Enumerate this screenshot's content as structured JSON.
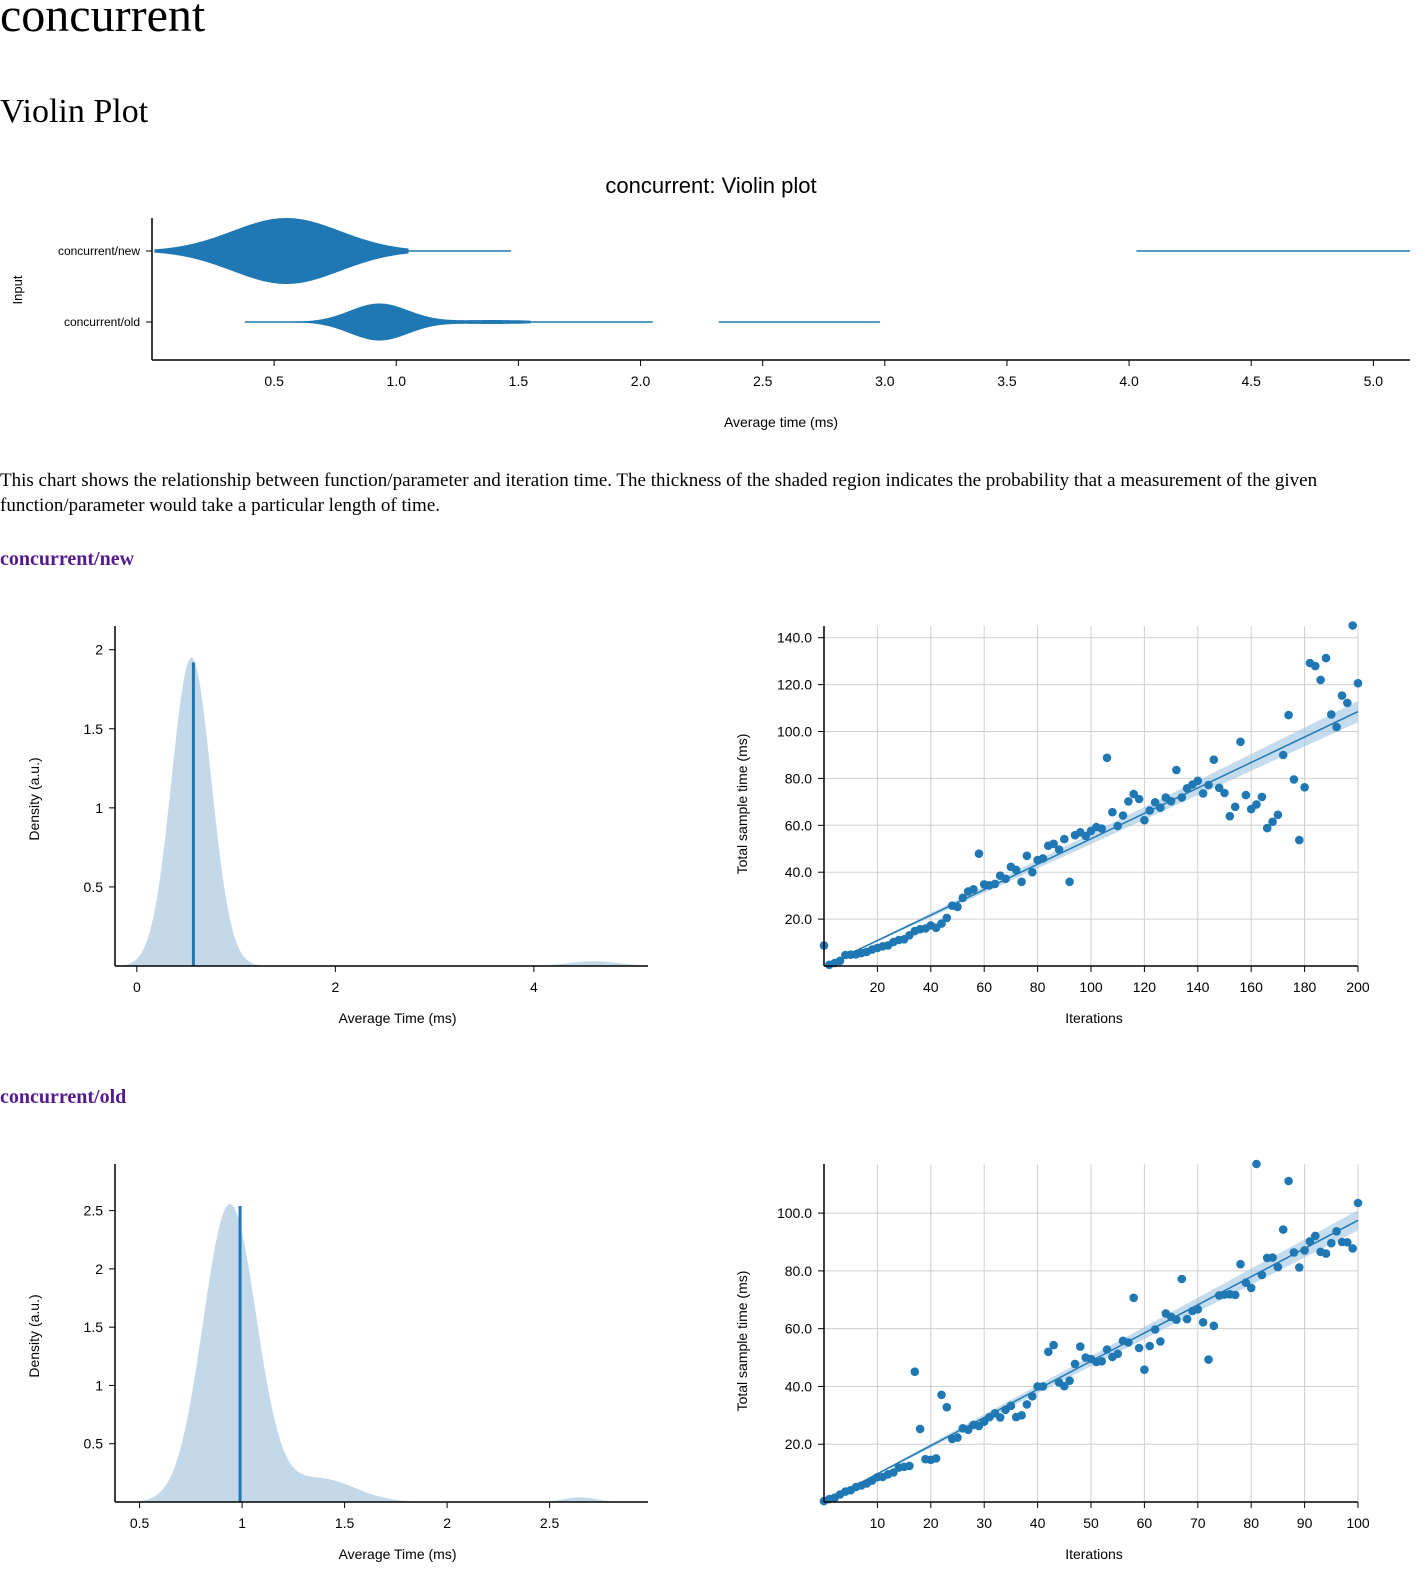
{
  "page": {
    "title": "concurrent",
    "violin_heading": "Violin Plot",
    "description": "This chart shows the relationship between function/parameter and iteration time. The thickness of the shaded region indicates the probability that a measurement of the given function/parameter would take a particular length of time."
  },
  "colors": {
    "series": "#1f78b4",
    "density_fill": "#c3d9ea",
    "band_fill": "#9ec4e2",
    "grid": "#d0d0d0",
    "link": "#551a8b"
  },
  "chart_data": [
    {
      "id": "violin",
      "type": "violin",
      "title": "concurrent: Violin plot",
      "xlabel": "Average time (ms)",
      "ylabel": "Input",
      "xlim": [
        0,
        5.15
      ],
      "xticks": [
        "0.5",
        "1.0",
        "1.5",
        "2.0",
        "2.5",
        "3.0",
        "3.5",
        "4.0",
        "4.5",
        "5.0"
      ],
      "categories": [
        "concurrent/new",
        "concurrent/old"
      ],
      "series": [
        {
          "name": "concurrent/new",
          "peaks": [
            [
              0.55,
              0.22,
              1.0
            ]
          ],
          "core_range": [
            0.01,
            1.05
          ],
          "tail_segments": [
            [
              0.01,
              1.47
            ],
            [
              4.03,
              5.15
            ]
          ]
        },
        {
          "name": "concurrent/old",
          "peaks": [
            [
              0.93,
              0.12,
              0.56
            ],
            [
              1.4,
              0.18,
              0.06
            ]
          ],
          "core_range": [
            0.58,
            1.55
          ],
          "tail_segments": [
            [
              0.38,
              2.05
            ],
            [
              2.32,
              2.98
            ]
          ]
        }
      ]
    },
    {
      "id": "pdf_new",
      "type": "area",
      "xlabel": "Average Time (ms)",
      "ylabel": "Density (a.u.)",
      "xlim": [
        -0.22,
        5.15
      ],
      "ylim": [
        0,
        2.15
      ],
      "xticks": [
        "0",
        "2",
        "4"
      ],
      "yticks": [
        "0.5",
        "1",
        "1.5",
        "2"
      ],
      "peaks": [
        [
          0.55,
          0.2,
          1.95
        ],
        [
          4.6,
          0.25,
          0.03
        ]
      ],
      "mean": 0.57,
      "mean_height": 1.92
    },
    {
      "id": "regression_new",
      "type": "scatter",
      "xlabel": "Iterations",
      "ylabel": "Total sample time (ms)",
      "xlim": [
        0,
        200
      ],
      "ylim": [
        0,
        145
      ],
      "xticks": [
        "20",
        "40",
        "60",
        "80",
        "100",
        "120",
        "140",
        "160",
        "180",
        "200"
      ],
      "yticks": [
        "20.0",
        "40.0",
        "60.0",
        "80.0",
        "100.0",
        "120.0",
        "140.0"
      ],
      "fit": {
        "x": [
          0,
          200
        ],
        "y": [
          0,
          108.5
        ]
      },
      "band": {
        "lower": [
          0,
          104
        ],
        "upper": [
          0,
          113
        ]
      },
      "points": {
        "x": [
          0,
          2,
          4,
          6,
          8,
          10,
          12,
          14,
          16,
          18,
          20,
          22,
          24,
          26,
          28,
          30,
          32,
          34,
          36,
          38,
          40,
          42,
          44,
          46,
          48,
          50,
          52,
          54,
          56,
          58,
          60,
          62,
          64,
          66,
          68,
          70,
          72,
          74,
          76,
          78,
          80,
          82,
          84,
          86,
          88,
          90,
          92,
          94,
          96,
          98,
          100,
          102,
          104,
          106,
          108,
          110,
          112,
          114,
          116,
          118,
          120,
          122,
          124,
          126,
          128,
          130,
          132,
          134,
          136,
          138,
          140,
          142,
          144,
          146,
          148,
          150,
          152,
          154,
          156,
          158,
          160,
          162,
          164,
          166,
          168,
          170,
          172,
          174,
          176,
          178,
          180,
          182,
          184,
          186,
          188,
          190,
          192,
          194,
          196,
          198,
          200
        ],
        "y": [
          8.7,
          0.5,
          1.3,
          2.2,
          4.7,
          4.8,
          5.0,
          5.5,
          6.0,
          7.0,
          7.7,
          8.4,
          8.8,
          10.2,
          11.1,
          11.4,
          13.1,
          14.9,
          15.7,
          16.0,
          17.3,
          16.3,
          18.1,
          20.5,
          25.7,
          25.2,
          29.1,
          31.8,
          32.7,
          47.9,
          34.8,
          34.4,
          35.0,
          38.5,
          37.2,
          42.3,
          41.0,
          35.9,
          47.0,
          40.0,
          45.2,
          45.9,
          51.3,
          52.1,
          49.7,
          54.1,
          35.9,
          55.8,
          57.0,
          55.5,
          57.6,
          59.3,
          58.6,
          88.8,
          65.6,
          59.7,
          64.2,
          70.2,
          73.3,
          71.2,
          62.2,
          66.3,
          69.8,
          67.5,
          71.8,
          70.3,
          83.6,
          71.9,
          75.8,
          77.4,
          79.0,
          73.6,
          77.2,
          88.0,
          76.0,
          73.8,
          63.9,
          67.9,
          95.6,
          72.9,
          66.9,
          68.9,
          72.1,
          58.8,
          61.5,
          64.5,
          90.0,
          107.0,
          79.6,
          53.7,
          76.2,
          129.2,
          127.9,
          122.0,
          131.3,
          107.3,
          101.9,
          115.3,
          112.2,
          145.2,
          120.6
        ]
      }
    },
    {
      "id": "pdf_old",
      "type": "area",
      "xlabel": "Average Time (ms)",
      "ylabel": "Density (a.u.)",
      "xlim": [
        0.38,
        2.98
      ],
      "ylim": [
        0,
        2.9
      ],
      "xticks": [
        "0.5",
        "1",
        "1.5",
        "2",
        "2.5"
      ],
      "yticks": [
        "0.5",
        "1",
        "1.5",
        "2",
        "2.5"
      ],
      "peaks": [
        [
          0.94,
          0.13,
          2.55
        ],
        [
          1.38,
          0.17,
          0.2
        ],
        [
          2.65,
          0.08,
          0.04
        ]
      ],
      "mean": 0.99,
      "mean_height": 2.54
    },
    {
      "id": "regression_old",
      "type": "scatter",
      "xlabel": "Iterations",
      "ylabel": "Total sample time (ms)",
      "xlim": [
        0,
        100
      ],
      "ylim": [
        0,
        117
      ],
      "xticks": [
        "10",
        "20",
        "30",
        "40",
        "50",
        "60",
        "70",
        "80",
        "90",
        "100"
      ],
      "yticks": [
        "20.0",
        "40.0",
        "60.0",
        "80.0",
        "100.0"
      ],
      "fit": {
        "x": [
          0,
          100
        ],
        "y": [
          0,
          97.5
        ]
      },
      "band": {
        "lower": [
          0,
          94
        ],
        "upper": [
          0,
          101
        ]
      },
      "points": {
        "x": [
          0,
          1,
          2,
          3,
          4,
          5,
          6,
          7,
          8,
          9,
          10,
          11,
          12,
          13,
          14,
          15,
          16,
          17,
          18,
          19,
          20,
          21,
          22,
          23,
          24,
          25,
          26,
          27,
          28,
          29,
          30,
          31,
          32,
          33,
          34,
          35,
          36,
          37,
          38,
          39,
          40,
          41,
          42,
          43,
          44,
          45,
          46,
          47,
          48,
          49,
          50,
          51,
          52,
          53,
          54,
          55,
          56,
          57,
          58,
          59,
          60,
          61,
          62,
          63,
          64,
          65,
          66,
          67,
          68,
          69,
          70,
          71,
          72,
          73,
          74,
          75,
          76,
          77,
          78,
          79,
          80,
          81,
          82,
          83,
          84,
          85,
          86,
          87,
          88,
          89,
          90,
          91,
          92,
          93,
          94,
          95,
          96,
          97,
          98,
          99,
          100
        ],
        "y": [
          0.3,
          1.0,
          1.5,
          2.6,
          3.6,
          4.1,
          5.2,
          5.7,
          6.4,
          7.4,
          8.6,
          8.7,
          9.6,
          10.2,
          11.9,
          12.2,
          12.5,
          45.1,
          25.3,
          14.8,
          14.6,
          15.1,
          37.1,
          32.8,
          21.8,
          22.3,
          25.5,
          25.0,
          26.7,
          26.3,
          27.8,
          29.4,
          30.7,
          29.3,
          31.9,
          33.3,
          29.4,
          30.0,
          33.8,
          36.6,
          40.0,
          40.0,
          52.0,
          54.3,
          41.4,
          40.1,
          42.0,
          47.8,
          53.8,
          50.0,
          49.5,
          48.5,
          48.7,
          52.8,
          50.2,
          51.3,
          55.8,
          55.2,
          70.7,
          53.3,
          45.8,
          54.0,
          59.7,
          55.6,
          65.3,
          64.1,
          63.1,
          77.2,
          63.3,
          66.1,
          66.7,
          62.2,
          49.3,
          61.0,
          71.5,
          71.8,
          71.9,
          71.7,
          82.3,
          75.9,
          74.1,
          117.0,
          78.6,
          84.5,
          84.6,
          81.3,
          94.3,
          111.1,
          86.4,
          81.2,
          87.1,
          90.2,
          92.1,
          86.6,
          86.0,
          89.6,
          93.7,
          90.0,
          89.9,
          87.8,
          103.5
        ]
      }
    }
  ]
}
